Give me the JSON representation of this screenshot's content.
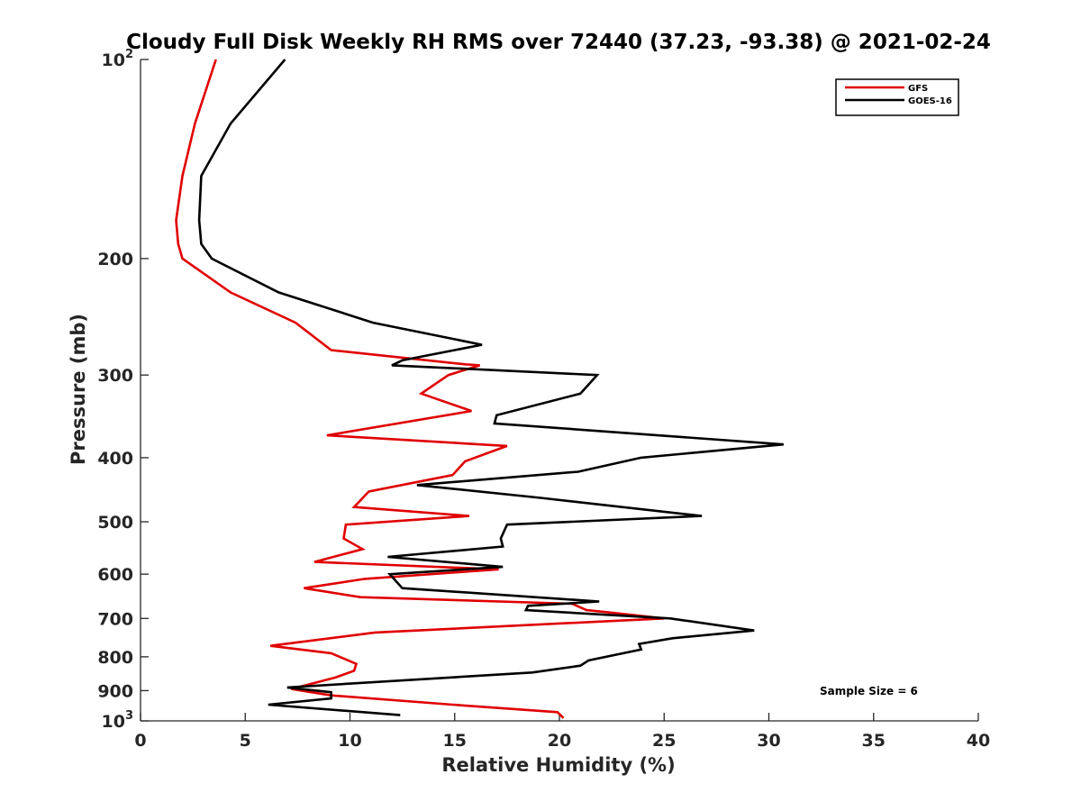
{
  "chart_data": {
    "type": "line",
    "title": "Cloudy Full Disk Weekly RH RMS over 72440 (37.23, -93.38) @ 2021-02-24",
    "xlabel": "Relative Humidity (%)",
    "ylabel": "Pressure (mb)",
    "xlim": [
      0,
      40
    ],
    "ylim": [
      100,
      1000
    ],
    "y_scale": "log",
    "y_reversed": true,
    "xticks": [
      0,
      5,
      10,
      15,
      20,
      25,
      30,
      35,
      40
    ],
    "yticks": [
      {
        "value": 100,
        "base": "10",
        "exp": "2"
      },
      {
        "value": 200,
        "label": "200"
      },
      {
        "value": 300,
        "label": "300"
      },
      {
        "value": 400,
        "label": "400"
      },
      {
        "value": 500,
        "label": "500"
      },
      {
        "value": 600,
        "label": "600"
      },
      {
        "value": 700,
        "label": "700"
      },
      {
        "value": 800,
        "label": "800"
      },
      {
        "value": 900,
        "label": "900"
      },
      {
        "value": 1000,
        "base": "10",
        "exp": "3"
      }
    ],
    "grid": false,
    "legend_position": "top-right",
    "annotation": "Sample Size = 6",
    "series": [
      {
        "name": "GFS",
        "color": "#e00000",
        "points": [
          [
            3.6,
            100
          ],
          [
            2.6,
            125
          ],
          [
            2.0,
            150
          ],
          [
            1.7,
            175
          ],
          [
            1.8,
            190
          ],
          [
            2.0,
            200
          ],
          [
            4.3,
            225
          ],
          [
            7.4,
            250
          ],
          [
            9.1,
            275
          ],
          [
            15.5,
            289
          ],
          [
            16.2,
            290
          ],
          [
            14.7,
            300
          ],
          [
            13.4,
            320
          ],
          [
            15.8,
            340
          ],
          [
            8.9,
            370
          ],
          [
            17.5,
            384
          ],
          [
            15.5,
            405
          ],
          [
            14.9,
            425
          ],
          [
            10.9,
            450
          ],
          [
            10.2,
            475
          ],
          [
            15.7,
            490
          ],
          [
            9.8,
            505
          ],
          [
            9.7,
            530
          ],
          [
            10.6,
            550
          ],
          [
            8.3,
            575
          ],
          [
            17.1,
            590
          ],
          [
            10.7,
            610
          ],
          [
            7.8,
            630
          ],
          [
            10.5,
            650
          ],
          [
            20.6,
            665
          ],
          [
            21.3,
            680
          ],
          [
            22.3,
            685
          ],
          [
            25.0,
            700
          ],
          [
            11.2,
            735
          ],
          [
            6.2,
            770
          ],
          [
            9.1,
            790
          ],
          [
            10.3,
            820
          ],
          [
            10.2,
            840
          ],
          [
            9.3,
            860
          ],
          [
            7.2,
            895
          ],
          [
            9.1,
            915
          ],
          [
            14.9,
            945
          ],
          [
            19.9,
            970
          ],
          [
            20.2,
            990
          ]
        ]
      },
      {
        "name": "GOES-16",
        "color": "#000000",
        "points": [
          [
            6.9,
            100
          ],
          [
            4.3,
            125
          ],
          [
            2.9,
            150
          ],
          [
            2.8,
            175
          ],
          [
            2.9,
            190
          ],
          [
            3.4,
            200
          ],
          [
            6.6,
            225
          ],
          [
            11.1,
            250
          ],
          [
            16.3,
            270
          ],
          [
            12.5,
            285
          ],
          [
            12.0,
            290
          ],
          [
            21.8,
            300
          ],
          [
            21.0,
            320
          ],
          [
            17.0,
            345
          ],
          [
            16.9,
            355
          ],
          [
            30.7,
            382
          ],
          [
            23.9,
            400
          ],
          [
            20.9,
            420
          ],
          [
            13.2,
            440
          ],
          [
            19.1,
            460
          ],
          [
            26.8,
            490
          ],
          [
            17.5,
            505
          ],
          [
            17.2,
            530
          ],
          [
            17.3,
            545
          ],
          [
            11.8,
            565
          ],
          [
            17.3,
            585
          ],
          [
            11.9,
            600
          ],
          [
            12.3,
            620
          ],
          [
            12.5,
            630
          ],
          [
            21.9,
            660
          ],
          [
            18.5,
            670
          ],
          [
            18.4,
            680
          ],
          [
            25.3,
            700
          ],
          [
            29.3,
            730
          ],
          [
            25.4,
            750
          ],
          [
            23.8,
            765
          ],
          [
            23.9,
            780
          ],
          [
            21.4,
            810
          ],
          [
            21.0,
            825
          ],
          [
            18.7,
            845
          ],
          [
            7.0,
            890
          ],
          [
            9.1,
            905
          ],
          [
            9.1,
            925
          ],
          [
            6.1,
            945
          ],
          [
            12.4,
            980
          ]
        ]
      }
    ]
  }
}
